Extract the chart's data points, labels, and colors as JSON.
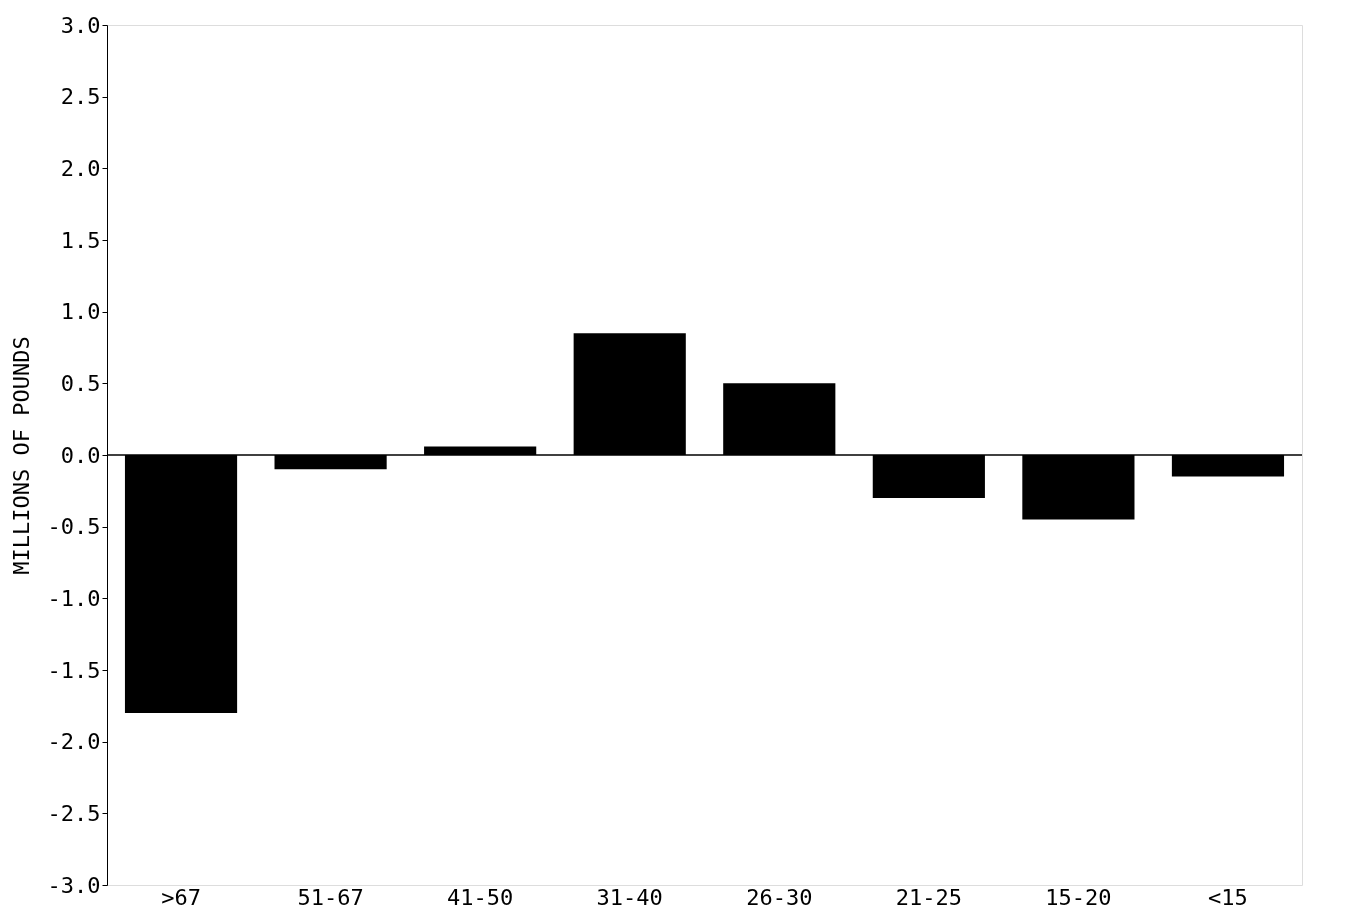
{
  "chart_data": {
    "type": "bar",
    "ylabel": "MILLIONS OF POUNDS",
    "categories": [
      ">67",
      "51-67",
      "41-50",
      "31-40",
      "26-30",
      "21-25",
      "15-20",
      "<15"
    ],
    "values": [
      -1.8,
      -0.1,
      0.06,
      0.85,
      0.5,
      -0.3,
      -0.45,
      -0.15
    ],
    "color": "#000000",
    "ylim": [
      -3,
      3
    ],
    "yticks": [
      {
        "value": -3,
        "label": "-3.0"
      },
      {
        "value": -2.5,
        "label": "-2.5"
      },
      {
        "value": -2,
        "label": "-2.0"
      },
      {
        "value": -1.5,
        "label": "-1.5"
      },
      {
        "value": -1,
        "label": "-1.0"
      },
      {
        "value": -0.5,
        "label": "-0.5"
      },
      {
        "value": 0,
        "label": "0.0"
      },
      {
        "value": 0.5,
        "label": "0.5"
      },
      {
        "value": 1,
        "label": "1.0"
      },
      {
        "value": 1.5,
        "label": "1.5"
      },
      {
        "value": 2,
        "label": "2.0"
      },
      {
        "value": 2.5,
        "label": "2.5"
      },
      {
        "value": 3,
        "label": "3.0"
      }
    ],
    "ref_lines": [
      {
        "axis": "y",
        "value": 0,
        "color": "#000000"
      }
    ]
  }
}
